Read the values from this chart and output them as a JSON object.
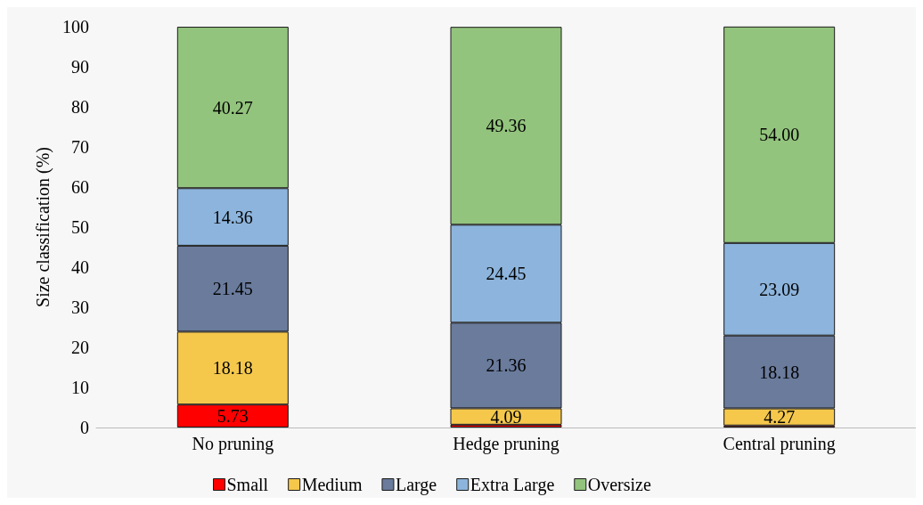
{
  "chart_data": {
    "type": "bar",
    "stacked": true,
    "ylabel": "Size classification (%)",
    "categories": [
      "No pruning",
      "Hedge pruning",
      "Central pruning"
    ],
    "series": [
      {
        "name": "Small",
        "color": "#ff0000",
        "values": [
          5.73,
          0.7,
          0.5
        ],
        "value_labels": [
          "5.73",
          null,
          null
        ]
      },
      {
        "name": "Medium",
        "color": "#f5c84c",
        "values": [
          18.18,
          4.09,
          4.27
        ],
        "value_labels": [
          "18.18",
          "4.09",
          "4.27"
        ]
      },
      {
        "name": "Large",
        "color": "#6a7b9c",
        "values": [
          21.45,
          21.36,
          18.18
        ],
        "value_labels": [
          "21.45",
          "21.36",
          "18.18"
        ]
      },
      {
        "name": "Extra Large",
        "color": "#8db4dc",
        "values": [
          14.36,
          24.45,
          23.09
        ],
        "value_labels": [
          "14.36",
          "24.45",
          "23.09"
        ]
      },
      {
        "name": "Oversize",
        "color": "#93c47d",
        "values": [
          40.27,
          49.36,
          54.0
        ],
        "value_labels": [
          "40.27",
          "49.36",
          "54.00"
        ]
      }
    ],
    "ylim": [
      0,
      100
    ],
    "yticks": [
      0,
      10,
      20,
      30,
      40,
      50,
      60,
      70,
      80,
      90,
      100
    ],
    "grid": false,
    "legend": "bottom"
  }
}
